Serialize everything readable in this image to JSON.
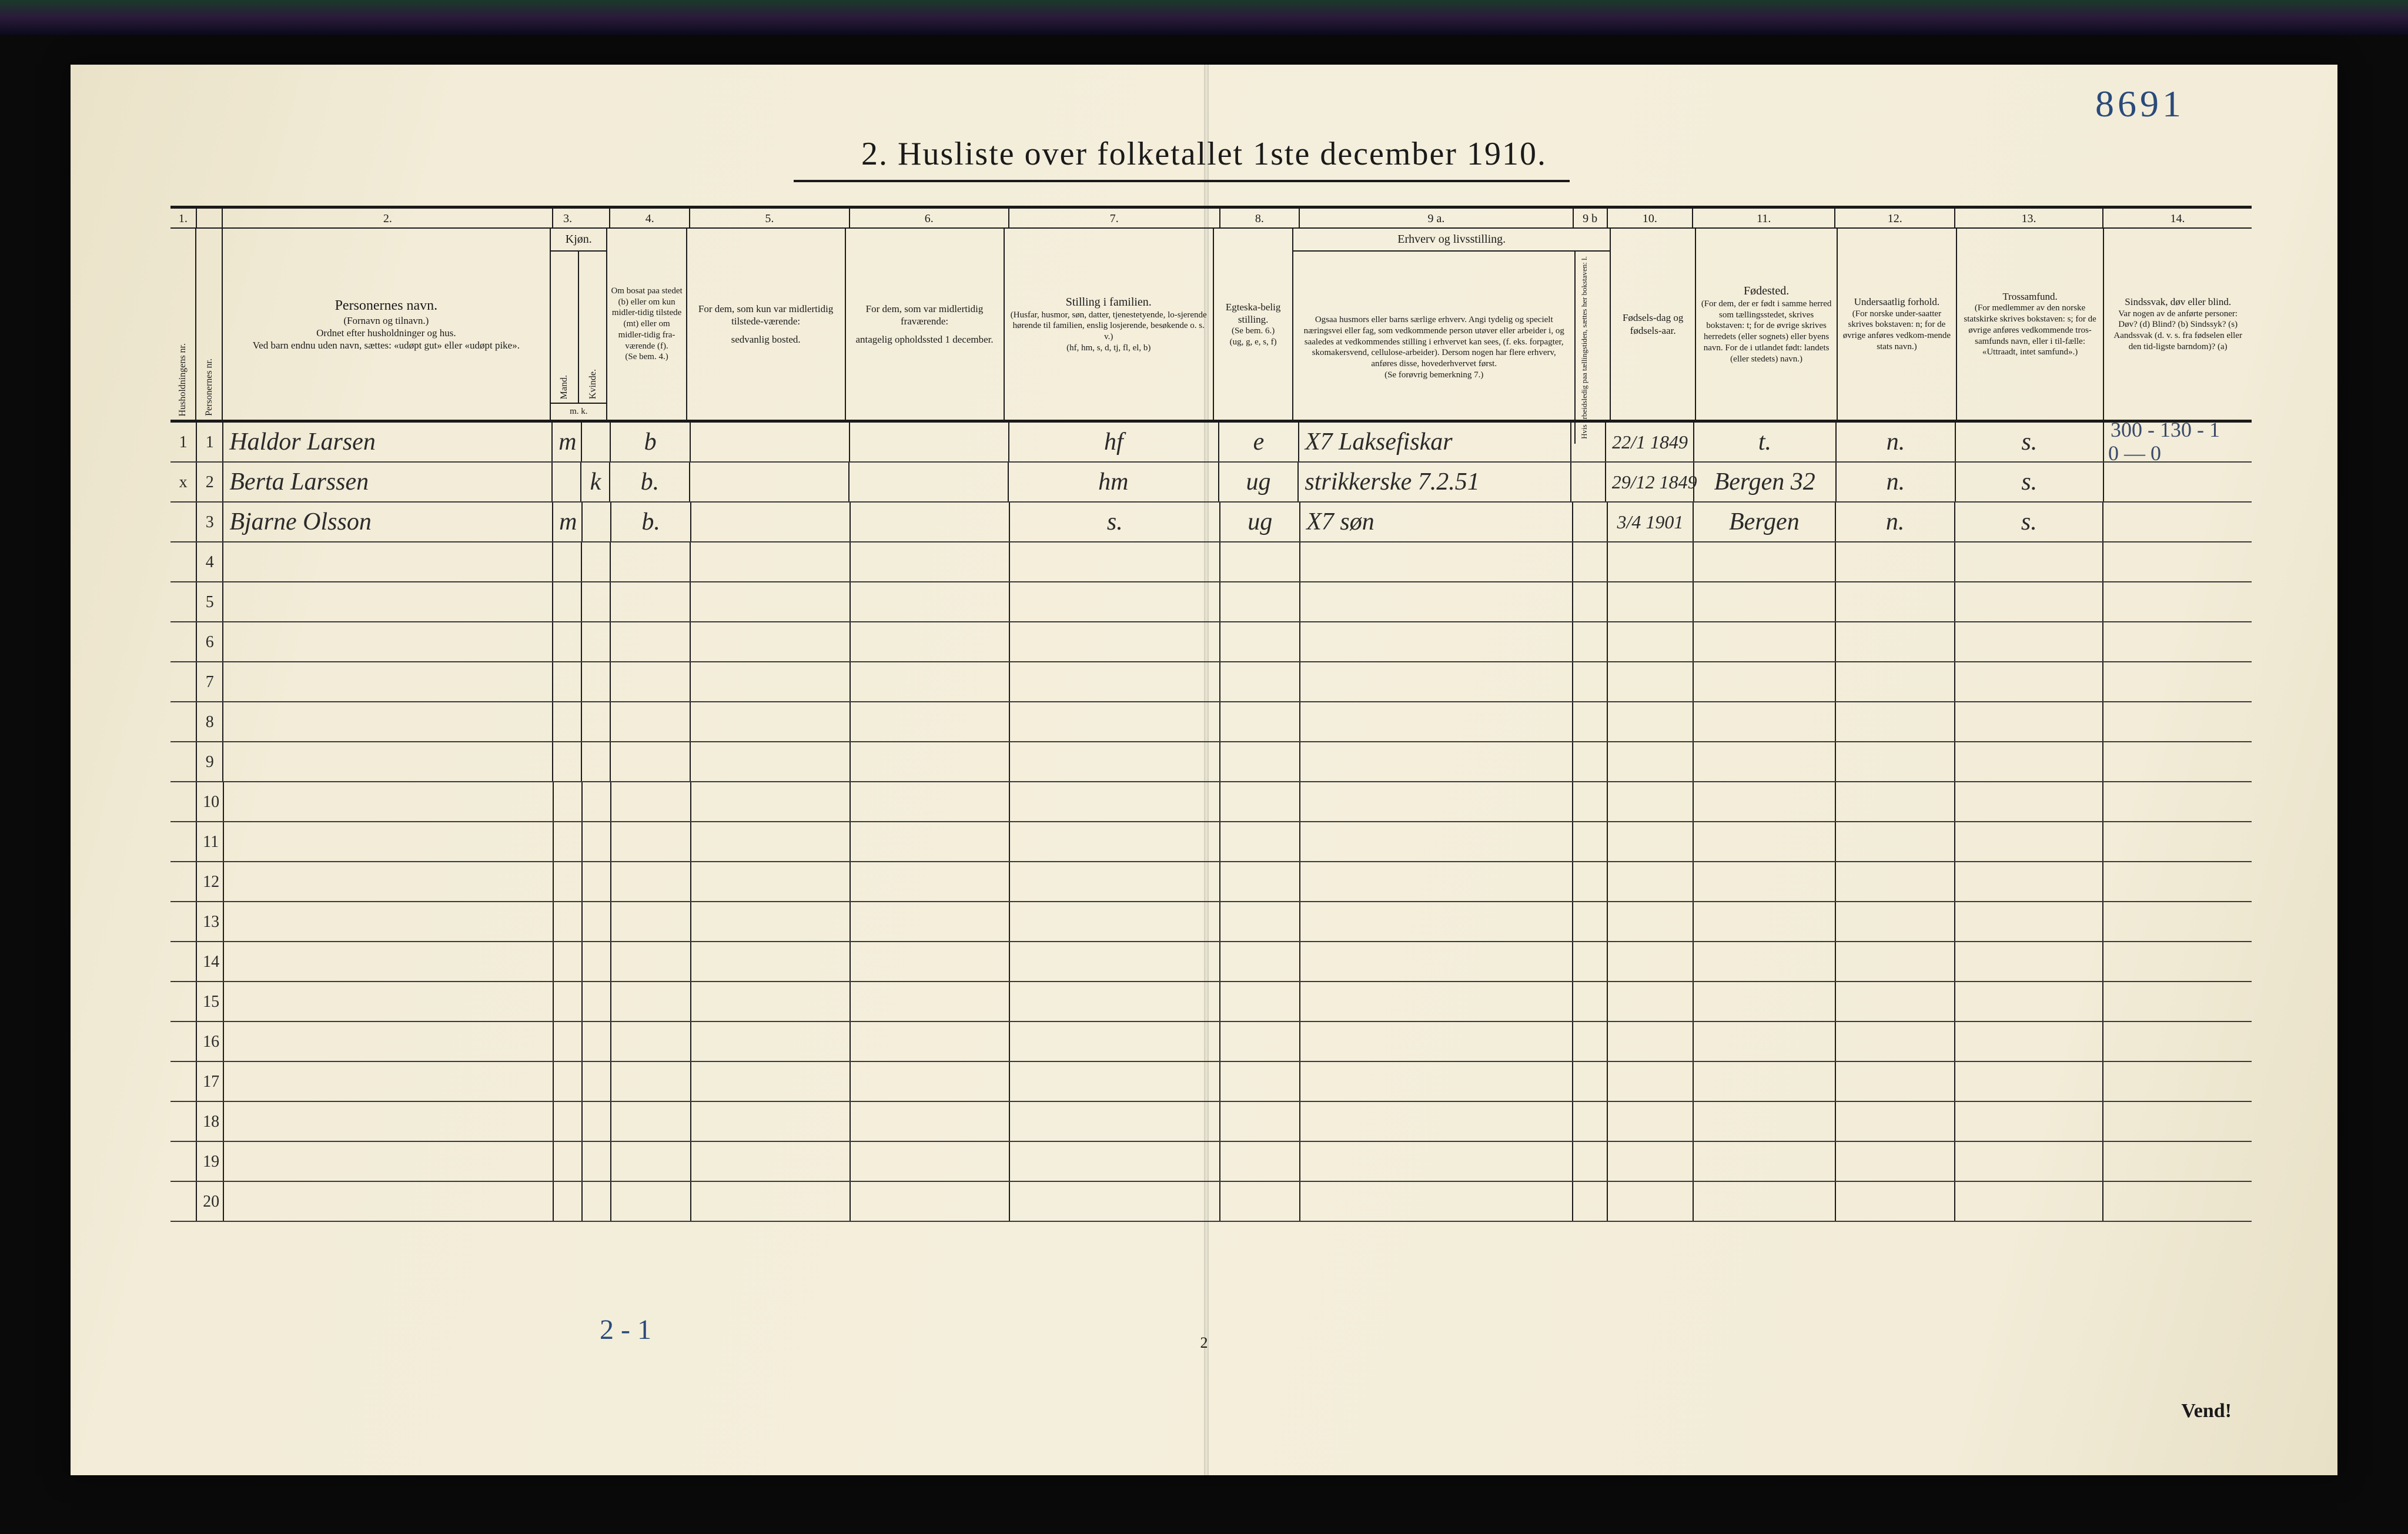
{
  "page_number_handwritten": "8691",
  "title": "2.  Husliste over folketallet 1ste december 1910.",
  "column_numbers": [
    "1.",
    "",
    "2.",
    "3.",
    "",
    "4.",
    "5.",
    "6.",
    "7.",
    "8.",
    "9 a.",
    "9 b",
    "10.",
    "11.",
    "12.",
    "13.",
    "14."
  ],
  "headers": {
    "c1a": "Husholdningens nr.",
    "c1b": "Personernes nr.",
    "c2_main": "Personernes navn.",
    "c2_sub1": "(Fornavn og tilnavn.)",
    "c2_sub2": "Ordnet efter husholdninger og hus.",
    "c2_sub3": "Ved barn endnu uden navn, sættes: «udøpt gut» eller «udøpt pike».",
    "c3_title": "Kjøn.",
    "c3a": "Mand.",
    "c3b": "Kvinde.",
    "c3_foot": "m.  k.",
    "c4_main": "Om bosat paa stedet (b) eller om kun midler-tidig tilstede (mt) eller om midler-tidig fra-værende (f).",
    "c4_foot": "(Se bem. 4.)",
    "c5_main": "For dem, som kun var midlertidig tilstede-værende:",
    "c5_sub": "sedvanlig bosted.",
    "c6_main": "For dem, som var midlertidig fraværende:",
    "c6_sub": "antagelig opholdssted 1 december.",
    "c7_main": "Stilling i familien.",
    "c7_sub1": "(Husfar, husmor, søn, datter, tjenestetyende, lo-sjerende hørende til familien, enslig losjerende, besøkende o. s. v.)",
    "c7_sub2": "(hf, hm, s, d, tj, fl, el, b)",
    "c8_main": "Egteska-belig stilling.",
    "c8_sub1": "(Se bem. 6.)",
    "c8_sub2": "(ug, g, e, s, f)",
    "c9_title": "Erhverv og livsstilling.",
    "c9a_text": "Ogsaa husmors eller barns særlige erhverv. Angi tydelig og specielt næringsvei eller fag, som vedkommende person utøver eller arbeider i, og saaledes at vedkommendes stilling i erhvervet kan sees, (f. eks. forpagter, skomakersvend, cellulose-arbeider). Dersom nogen har flere erhverv, anføres disse, hovederhvervet først.",
    "c9a_foot": "(Se forøvrig bemerkning 7.)",
    "c9b": "Hvis arbeidsledig paa tællingstiden, sættes her bokstaven: l.",
    "c10_main": "Fødsels-dag og fødsels-aar.",
    "c11_main": "Fødested.",
    "c11_sub": "(For dem, der er født i samme herred som tællingsstedet, skrives bokstaven: t; for de øvrige skrives herredets (eller sognets) eller byens navn. For de i utlandet født: landets (eller stedets) navn.)",
    "c12_main": "Undersaatlig forhold.",
    "c12_sub": "(For norske under-saatter skrives bokstaven: n; for de øvrige anføres vedkom-mende stats navn.)",
    "c13_main": "Trossamfund.",
    "c13_sub": "(For medlemmer av den norske statskirke skrives bokstaven: s; for de øvrige anføres vedkommende tros-samfunds navn, eller i til-fælle: «Uttraadt, intet samfund».)",
    "c14_main": "Sindssvak, døv eller blind.",
    "c14_sub1": "Var nogen av de anførte personer:",
    "c14_sub2": "Døv? (d)  Blind? (b)  Sindssyk? (s)  Aandssvak (d. v. s. fra fødselen eller den tid-ligste barndom)? (a)"
  },
  "rows": [
    {
      "hh": "1",
      "pn": "1",
      "name": "Haldor Larsen",
      "sex_m": "m",
      "sex_k": "",
      "res": "b",
      "c5": "",
      "c6": "",
      "fam": "hf",
      "mar": "e",
      "occ": "X7 Laksefiskar",
      "c9b": "",
      "dob": "22/1 1849",
      "birthplace": "t.",
      "nat": "n.",
      "rel": "s.",
      "c14": ""
    },
    {
      "hh": "x",
      "pn": "2",
      "name": "Berta Larssen",
      "sex_m": "",
      "sex_k": "k",
      "res": "b.",
      "c5": "",
      "c6": "",
      "fam": "hm",
      "mar": "ug",
      "occ": "strikkerske  7.2.51",
      "c9b": "",
      "dob": "29/12 1849",
      "birthplace": "Bergen 32",
      "nat": "n.",
      "rel": "s.",
      "c14": ""
    },
    {
      "hh": "",
      "pn": "3",
      "name": "Bjarne Olsson",
      "sex_m": "m",
      "sex_k": "",
      "res": "b.",
      "c5": "",
      "c6": "",
      "fam": "s.",
      "mar": "ug",
      "occ": "X7 søn",
      "c9b": "",
      "dob": "3/4 1901",
      "birthplace": "Bergen",
      "nat": "n.",
      "rel": "s.",
      "c14": ""
    }
  ],
  "margin_note_r1": "300 - 130 - 1",
  "margin_note_r1b": "0 — 0",
  "empty_row_numbers": [
    "4",
    "5",
    "6",
    "7",
    "8",
    "9",
    "10",
    "11",
    "12",
    "13",
    "14",
    "15",
    "16",
    "17",
    "18",
    "19",
    "20"
  ],
  "footer_left_hand": "2 - 1",
  "footer_page": "2",
  "vend": "Vend!",
  "colors": {
    "paper": "#f2ecd8",
    "ink": "#1a1a1a",
    "hand_ink": "#2a2a2a",
    "blue_pencil": "#2a4a7a",
    "row_line": "#3a3a3a"
  },
  "typography": {
    "title_size_pt": 42,
    "header_size_pt": 15,
    "body_hand_size_pt": 32
  }
}
